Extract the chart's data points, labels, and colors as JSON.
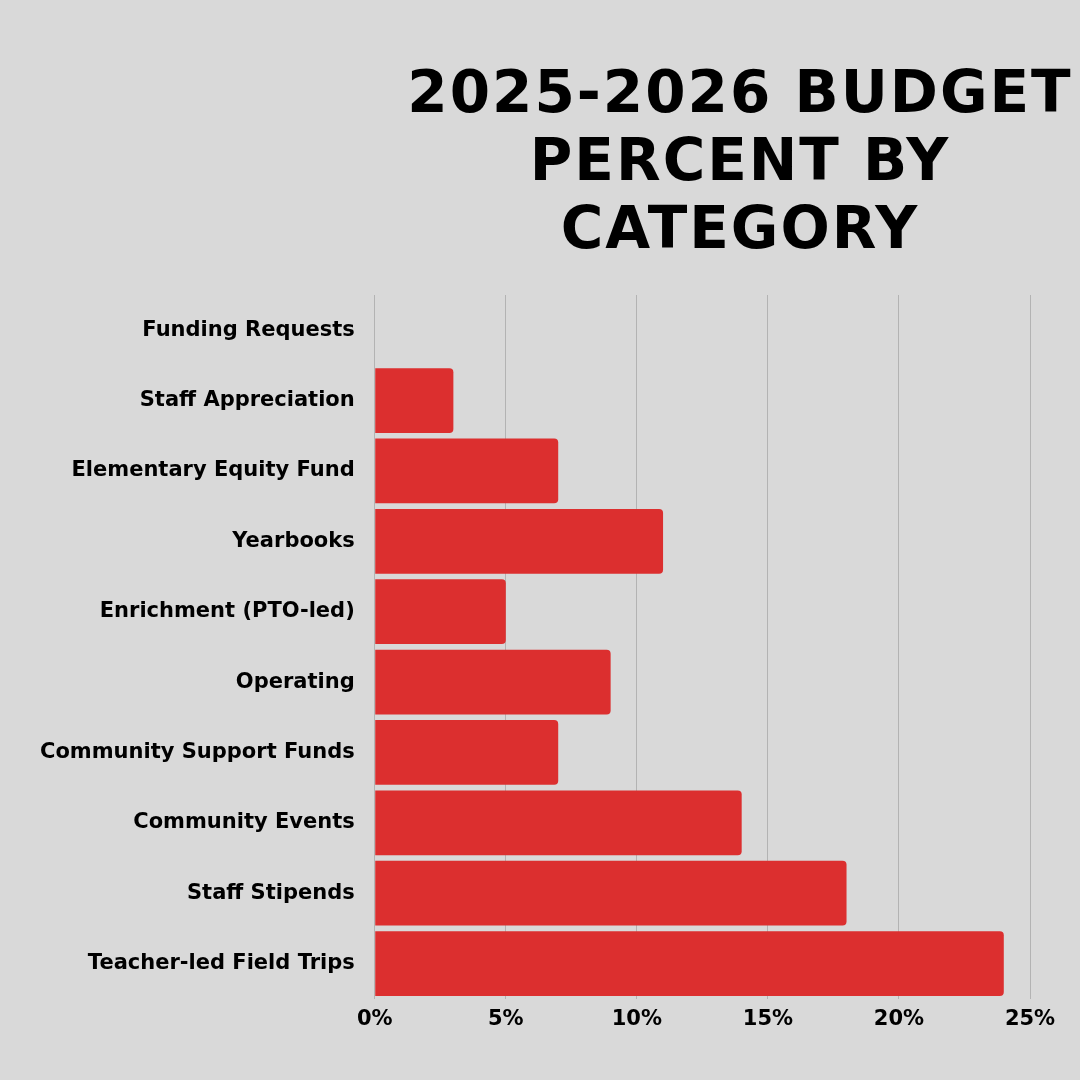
{
  "chart_data": {
    "type": "bar",
    "orientation": "horizontal",
    "title": "2025-2026 BUDGET PERCENT BY CATEGORY",
    "categories": [
      "Funding Requests",
      "Staff Appreciation",
      "Elementary Equity Fund",
      "Yearbooks",
      "Enrichment (PTO-led)",
      "Operating",
      "Community Support Funds",
      "Community Events",
      "Staff Stipends",
      "Teacher-led Field Trips"
    ],
    "values": [
      0,
      3,
      7,
      11,
      5,
      9,
      7,
      14,
      18,
      24
    ],
    "color": "#dc2f2f",
    "xlim": [
      0,
      25
    ],
    "xticks": [
      {
        "value": 0,
        "label": "0%"
      },
      {
        "value": 5,
        "label": "5%"
      },
      {
        "value": 10,
        "label": "10%"
      },
      {
        "value": 15,
        "label": "15%"
      },
      {
        "value": 20,
        "label": "20%"
      },
      {
        "value": 25,
        "label": "25%"
      }
    ],
    "grid": "x",
    "legend": false
  }
}
